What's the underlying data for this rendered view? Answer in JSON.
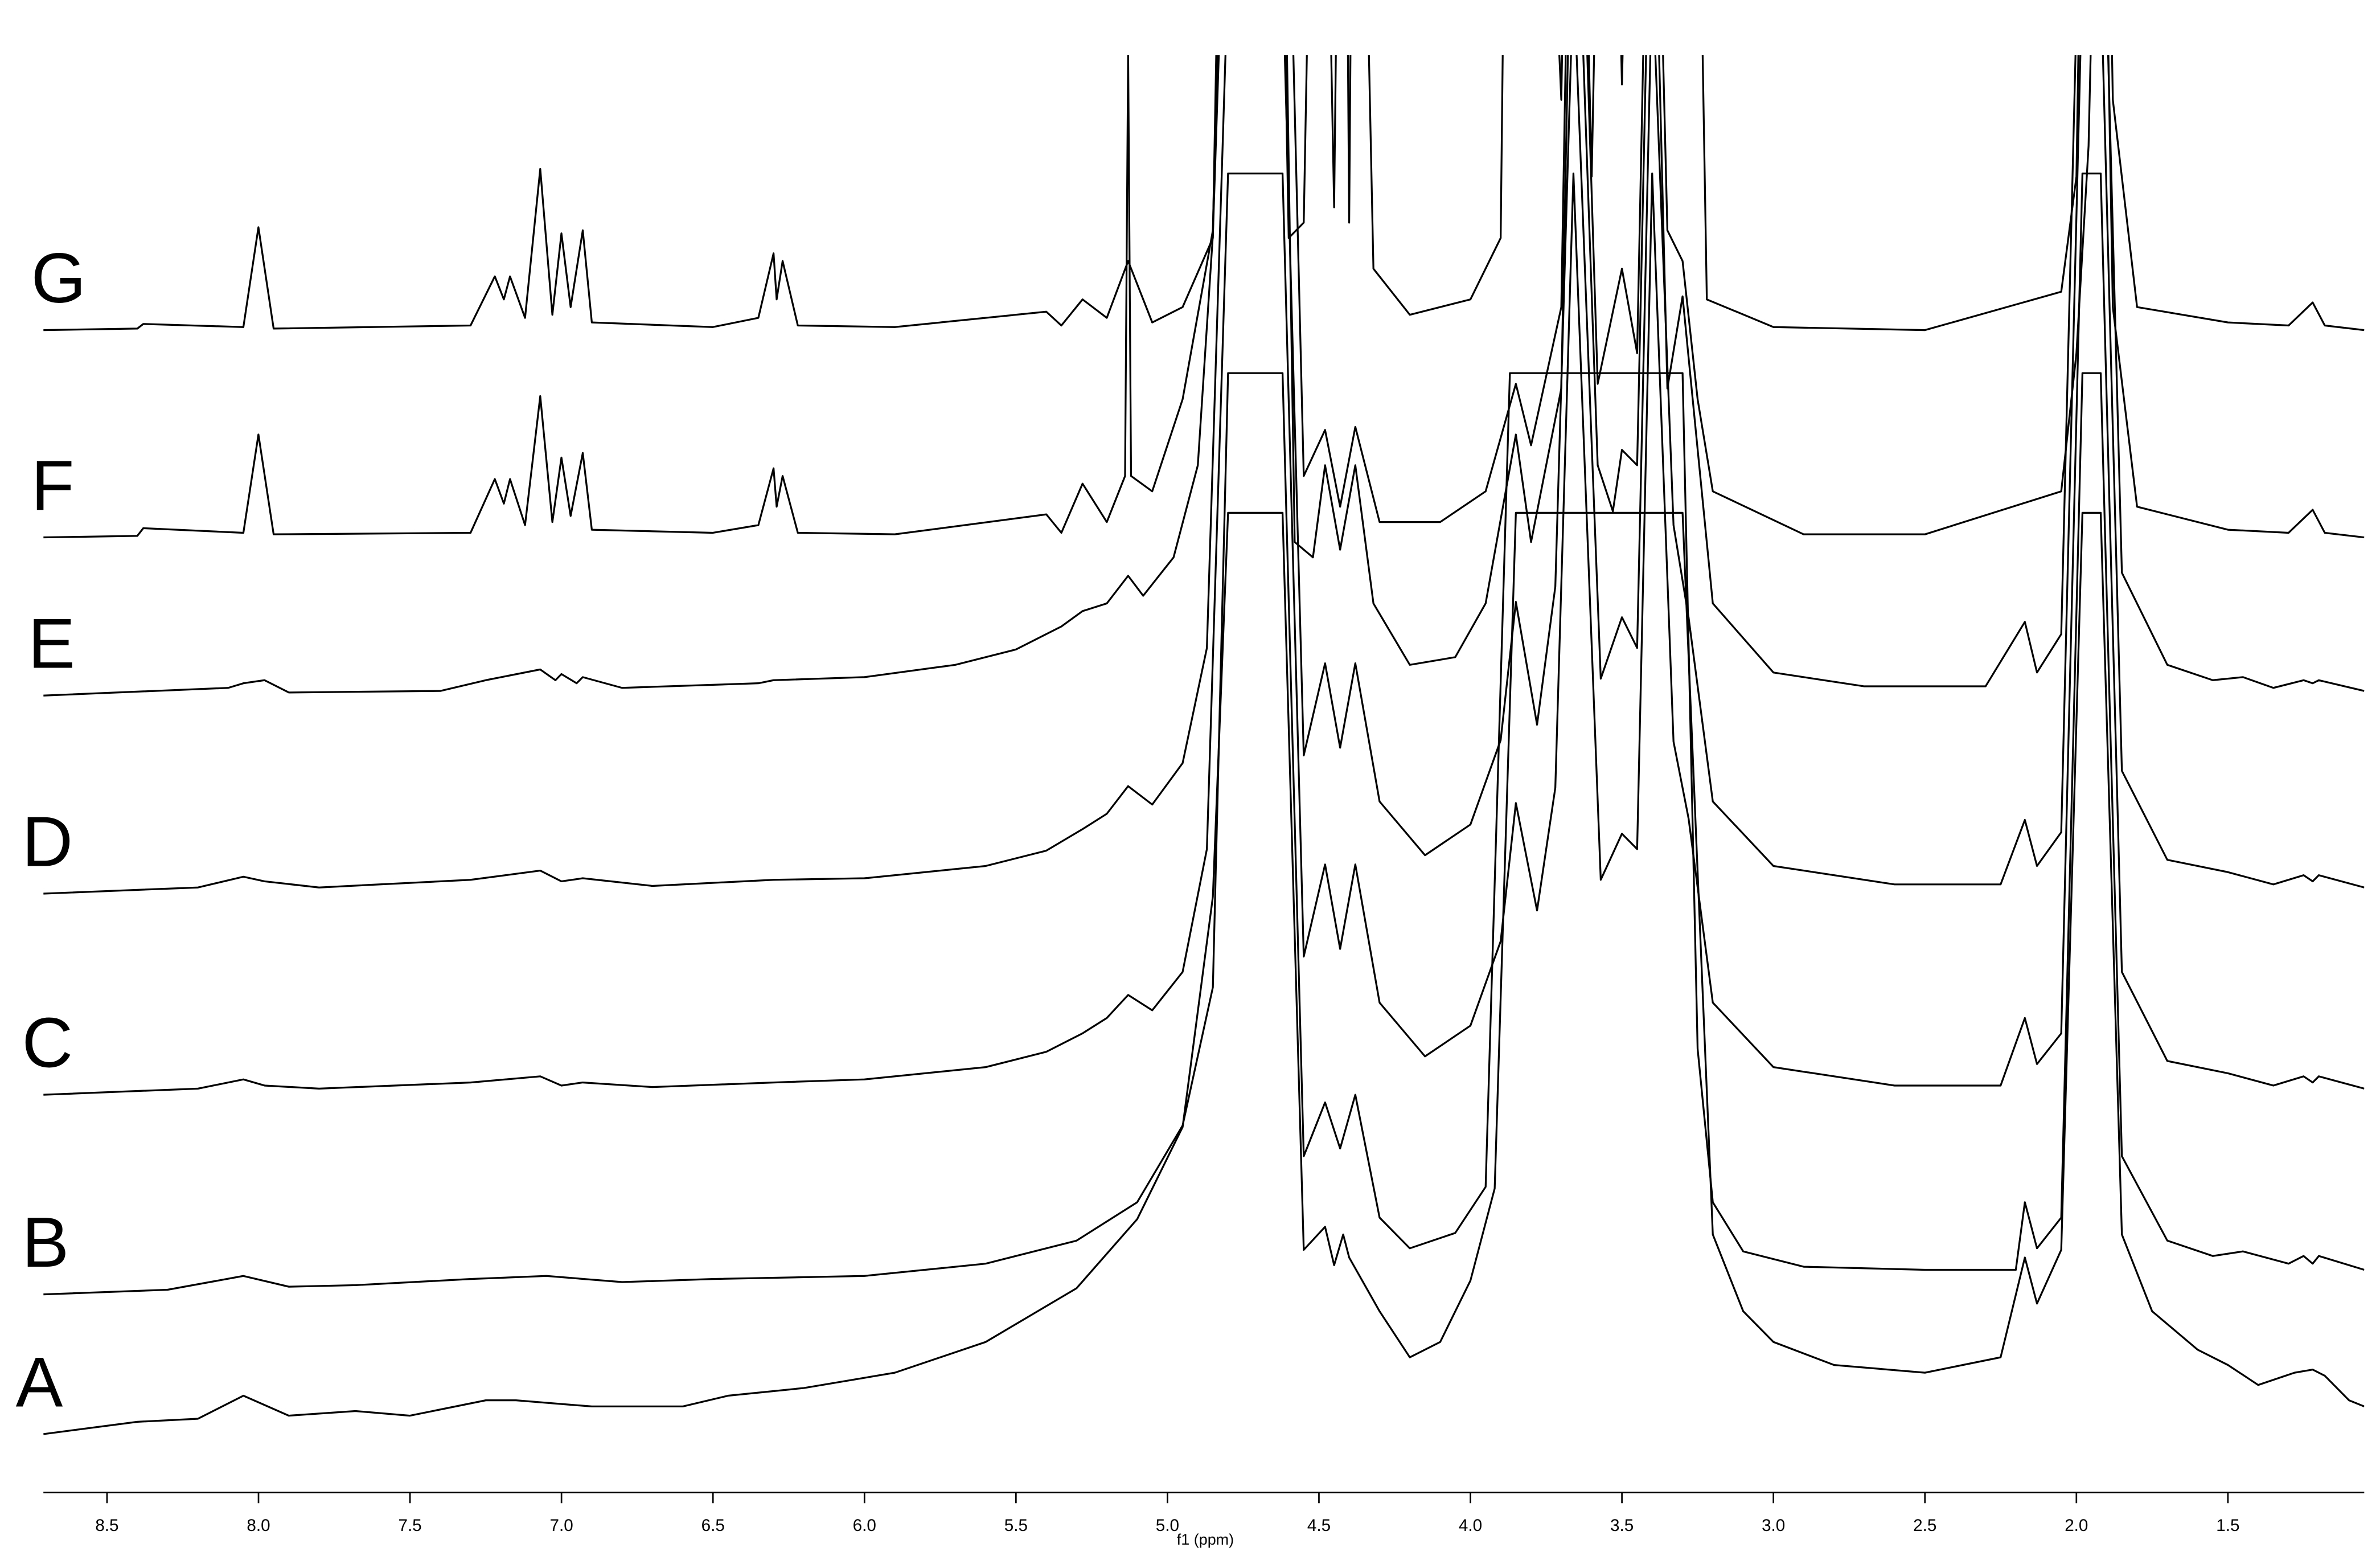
{
  "chart_data": {
    "type": "line",
    "xlabel": "f1 (ppm)",
    "xlim": [
      8.71,
      1.05
    ],
    "xticks": [
      8.5,
      {
        "value": 8,
        "label": "8.0"
      },
      7.5,
      {
        "value": 7,
        "label": "7.0"
      },
      6.5,
      {
        "value": 6,
        "label": "6.0"
      },
      5.5,
      {
        "value": 5,
        "label": "5.0"
      },
      4.5,
      {
        "value": 4,
        "label": "4.0"
      },
      3.5,
      {
        "value": 3,
        "label": "3.0"
      },
      2.5,
      {
        "value": 2,
        "label": "2.0"
      },
      1.5
    ],
    "series": [
      {
        "name": "A",
        "color": "#000000",
        "x": [
          8.71,
          8.4,
          8.2,
          8.05,
          7.9,
          7.68,
          7.5,
          7.25,
          7.15,
          6.9,
          6.6,
          6.45,
          6.2,
          5.9,
          5.6,
          5.3,
          5.1,
          4.95,
          4.85,
          4.8,
          4.72,
          4.62,
          4.55,
          4.48,
          4.45,
          4.42,
          4.4,
          4.3,
          4.2,
          4.1,
          4.0,
          3.92,
          3.85,
          3.8,
          3.7,
          3.6,
          3.5,
          3.4,
          3.3,
          3.2,
          3.1,
          3.0,
          2.8,
          2.5,
          2.25,
          2.17,
          2.13,
          2.05,
          1.98,
          1.92,
          1.85,
          1.75,
          1.6,
          1.5,
          1.4,
          1.28,
          1.22,
          1.18,
          1.1,
          1.05
        ],
        "values": [
          0,
          8,
          10,
          25,
          12,
          15,
          12,
          22,
          22,
          18,
          18,
          25,
          30,
          40,
          60,
          95,
          140,
          200,
          350,
          600,
          600,
          600,
          120,
          135,
          110,
          130,
          115,
          80,
          50,
          60,
          100,
          160,
          600,
          600,
          600,
          600,
          600,
          600,
          600,
          130,
          80,
          60,
          45,
          40,
          50,
          115,
          85,
          120,
          600,
          600,
          130,
          80,
          55,
          45,
          32,
          40,
          42,
          38,
          22,
          18
        ]
      },
      {
        "name": "B",
        "color": "#000000",
        "x": [
          8.71,
          8.3,
          8.05,
          7.9,
          7.68,
          7.3,
          7.05,
          6.8,
          6.5,
          6.0,
          5.6,
          5.3,
          5.1,
          4.95,
          4.85,
          4.8,
          4.72,
          4.62,
          4.55,
          4.48,
          4.43,
          4.38,
          4.3,
          4.2,
          4.05,
          3.95,
          3.87,
          3.8,
          3.7,
          3.66,
          3.55,
          3.45,
          3.4,
          3.3,
          3.25,
          3.2,
          3.1,
          2.9,
          2.5,
          2.2,
          2.17,
          2.13,
          2.05,
          1.98,
          1.92,
          1.85,
          1.7,
          1.55,
          1.45,
          1.3,
          1.25,
          1.22,
          1.2,
          1.05
        ],
        "values": [
          0,
          3,
          12,
          5,
          6,
          10,
          12,
          8,
          10,
          12,
          20,
          35,
          60,
          110,
          200,
          600,
          600,
          600,
          90,
          125,
          95,
          130,
          50,
          30,
          40,
          70,
          600,
          600,
          600,
          600,
          600,
          600,
          600,
          600,
          160,
          60,
          28,
          18,
          16,
          16,
          60,
          30,
          50,
          600,
          600,
          90,
          35,
          25,
          28,
          20,
          25,
          20,
          25,
          16
        ]
      },
      {
        "name": "C",
        "color": "#000000",
        "x": [
          8.71,
          8.2,
          8.05,
          7.98,
          7.8,
          7.3,
          7.07,
          7.0,
          6.93,
          6.7,
          6.3,
          6.0,
          5.6,
          5.4,
          5.28,
          5.2,
          5.13,
          5.05,
          4.95,
          4.87,
          4.8,
          4.7,
          4.62,
          4.55,
          4.48,
          4.43,
          4.38,
          4.3,
          4.15,
          4.0,
          3.9,
          3.85,
          3.78,
          3.72,
          3.66,
          3.57,
          3.5,
          3.45,
          3.4,
          3.33,
          3.28,
          3.2,
          3.0,
          2.6,
          2.25,
          2.17,
          2.13,
          2.05,
          1.98,
          1.92,
          1.85,
          1.7,
          1.5,
          1.35,
          1.25,
          1.22,
          1.2,
          1.05
        ],
        "values": [
          0,
          4,
          10,
          6,
          4,
          8,
          12,
          6,
          8,
          5,
          8,
          10,
          18,
          28,
          40,
          50,
          65,
          55,
          80,
          160,
          600,
          600,
          600,
          90,
          150,
          95,
          150,
          60,
          25,
          45,
          100,
          190,
          120,
          200,
          600,
          140,
          170,
          160,
          600,
          230,
          180,
          60,
          18,
          6,
          6,
          50,
          20,
          40,
          600,
          600,
          80,
          22,
          14,
          6,
          12,
          8,
          12,
          4
        ]
      },
      {
        "name": "D",
        "color": "#000000",
        "x": [
          8.71,
          8.2,
          8.05,
          7.98,
          7.8,
          7.3,
          7.07,
          7.0,
          6.93,
          6.7,
          6.3,
          6.0,
          5.6,
          5.4,
          5.28,
          5.2,
          5.13,
          5.05,
          4.95,
          4.87,
          4.8,
          4.7,
          4.62,
          4.55,
          4.48,
          4.43,
          4.38,
          4.3,
          4.15,
          4.0,
          3.9,
          3.85,
          3.78,
          3.72,
          3.66,
          3.57,
          3.5,
          3.45,
          3.4,
          3.33,
          3.28,
          3.2,
          3.0,
          2.6,
          2.25,
          2.17,
          2.13,
          2.05,
          1.98,
          1.92,
          1.85,
          1.7,
          1.5,
          1.35,
          1.25,
          1.22,
          1.2,
          1.05
        ],
        "values": [
          0,
          4,
          11,
          8,
          4,
          9,
          15,
          8,
          10,
          5,
          9,
          10,
          18,
          28,
          42,
          52,
          70,
          58,
          85,
          160,
          600,
          600,
          600,
          90,
          150,
          95,
          150,
          60,
          25,
          45,
          100,
          190,
          110,
          200,
          600,
          140,
          180,
          160,
          600,
          240,
          180,
          60,
          18,
          6,
          6,
          48,
          18,
          40,
          600,
          600,
          80,
          22,
          14,
          6,
          12,
          8,
          12,
          4
        ]
      },
      {
        "name": "E",
        "color": "#000000",
        "x": [
          8.71,
          8.1,
          8.05,
          7.98,
          7.9,
          7.4,
          7.25,
          7.07,
          7.02,
          7.0,
          6.95,
          6.93,
          6.8,
          6.35,
          6.3,
          6.0,
          5.7,
          5.5,
          5.35,
          5.28,
          5.2,
          5.13,
          5.08,
          4.98,
          4.9,
          4.85,
          4.8,
          4.7,
          4.62,
          4.58,
          4.52,
          4.48,
          4.43,
          4.38,
          4.32,
          4.2,
          4.05,
          3.95,
          3.85,
          3.8,
          3.7,
          3.66,
          3.58,
          3.53,
          3.5,
          3.45,
          3.4,
          3.35,
          3.3,
          3.27,
          3.2,
          3.0,
          2.7,
          2.3,
          2.17,
          2.13,
          2.05,
          1.98,
          1.92,
          1.85,
          1.7,
          1.55,
          1.45,
          1.35,
          1.25,
          1.22,
          1.2,
          1.05
        ],
        "values": [
          0,
          5,
          8,
          10,
          2,
          3,
          10,
          17,
          10,
          14,
          8,
          12,
          5,
          8,
          10,
          12,
          20,
          30,
          45,
          55,
          60,
          78,
          65,
          90,
          150,
          300,
          600,
          600,
          600,
          100,
          90,
          150,
          95,
          150,
          60,
          20,
          25,
          60,
          170,
          100,
          200,
          600,
          150,
          120,
          160,
          150,
          600,
          200,
          260,
          200,
          60,
          15,
          6,
          6,
          48,
          15,
          40,
          600,
          600,
          80,
          20,
          10,
          12,
          5,
          10,
          8,
          10,
          3
        ]
      },
      {
        "name": "F",
        "color": "#000000",
        "x": [
          8.71,
          8.4,
          8.38,
          8.05,
          8.0,
          7.95,
          7.3,
          7.22,
          7.19,
          7.17,
          7.12,
          7.07,
          7.03,
          7.0,
          6.97,
          6.93,
          6.9,
          6.5,
          6.35,
          6.3,
          6.29,
          6.27,
          6.22,
          5.9,
          5.4,
          5.35,
          5.28,
          5.2,
          5.14,
          5.13,
          5.12,
          5.05,
          4.95,
          4.85,
          4.8,
          4.7,
          4.62,
          4.55,
          4.48,
          4.43,
          4.38,
          4.3,
          4.1,
          3.95,
          3.85,
          3.8,
          3.7,
          3.66,
          3.58,
          3.5,
          3.45,
          3.4,
          3.35,
          3.3,
          3.25,
          3.2,
          2.9,
          2.5,
          2.05,
          2.0,
          1.96,
          1.92,
          1.88,
          1.8,
          1.5,
          1.3,
          1.22,
          1.18,
          1.05
        ],
        "values": [
          0,
          1,
          6,
          3,
          67,
          2,
          3,
          38,
          22,
          38,
          8,
          92,
          10,
          52,
          14,
          55,
          5,
          3,
          8,
          45,
          20,
          40,
          3,
          2,
          15,
          3,
          35,
          10,
          40,
          315,
          40,
          30,
          90,
          200,
          600,
          600,
          600,
          40,
          70,
          20,
          72,
          10,
          10,
          30,
          100,
          60,
          150,
          600,
          100,
          175,
          120,
          600,
          200,
          180,
          90,
          30,
          2,
          2,
          30,
          120,
          255,
          600,
          150,
          20,
          5,
          3,
          18,
          3,
          0
        ]
      },
      {
        "name": "G",
        "color": "#000000",
        "x": [
          8.71,
          8.4,
          8.38,
          8.05,
          8.0,
          7.95,
          7.3,
          7.22,
          7.19,
          7.17,
          7.12,
          7.07,
          7.03,
          7.0,
          6.97,
          6.93,
          6.9,
          6.5,
          6.35,
          6.3,
          6.29,
          6.27,
          6.22,
          5.9,
          5.4,
          5.35,
          5.28,
          5.2,
          5.13,
          5.05,
          4.95,
          4.85,
          4.8,
          4.72,
          4.65,
          4.6,
          4.55,
          4.5,
          4.45,
          4.42,
          4.4,
          4.38,
          4.32,
          4.2,
          4.0,
          3.9,
          3.87,
          3.83,
          3.8,
          3.7,
          3.66,
          3.6,
          3.55,
          3.5,
          3.45,
          3.4,
          3.35,
          3.3,
          3.27,
          3.22,
          3.0,
          2.5,
          2.05,
          2.0,
          1.96,
          1.92,
          1.88,
          1.8,
          1.5,
          1.3,
          1.22,
          1.18,
          1.05
        ],
        "values": [
          0,
          1,
          4,
          2,
          67,
          1,
          3,
          35,
          20,
          35,
          8,
          105,
          10,
          63,
          15,
          65,
          5,
          2,
          8,
          50,
          20,
          45,
          3,
          2,
          12,
          3,
          20,
          8,
          45,
          5,
          15,
          60,
          600,
          600,
          600,
          60,
          70,
          600,
          80,
          600,
          70,
          600,
          40,
          10,
          20,
          60,
          600,
          600,
          600,
          150,
          600,
          100,
          600,
          160,
          600,
          600,
          600,
          600,
          600,
          20,
          2,
          0,
          25,
          100,
          600,
          600,
          150,
          15,
          5,
          3,
          18,
          3,
          0
        ]
      }
    ]
  }
}
